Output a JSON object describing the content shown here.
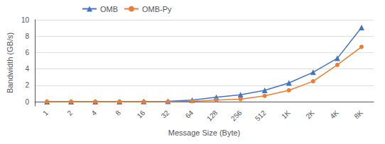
{
  "chart_data": {
    "type": "line",
    "xlabel": "Message Size (Byte)",
    "ylabel": "Bandwidth (GB/s)",
    "categories": [
      "1",
      "2",
      "4",
      "8",
      "16",
      "32",
      "64",
      "128",
      "256",
      "512",
      "1K",
      "2K",
      "4K",
      "8K"
    ],
    "series": [
      {
        "name": "OMB",
        "color": "#4472c4",
        "marker": "triangle",
        "values": [
          0.02,
          0.02,
          0.02,
          0.02,
          0.03,
          0.07,
          0.2,
          0.55,
          0.85,
          1.4,
          2.3,
          3.6,
          5.3,
          9.05
        ]
      },
      {
        "name": "OMB-Py",
        "color": "#ed7d31",
        "marker": "circle",
        "values": [
          0.02,
          0.02,
          0.02,
          0.02,
          0.02,
          0.04,
          0.07,
          0.22,
          0.32,
          0.72,
          1.4,
          2.5,
          4.5,
          6.7
        ]
      }
    ],
    "ylim": [
      -0.5,
      10
    ],
    "yticks": [
      0,
      2,
      4,
      6,
      8,
      10
    ],
    "grid": true,
    "legend": "upper left"
  }
}
